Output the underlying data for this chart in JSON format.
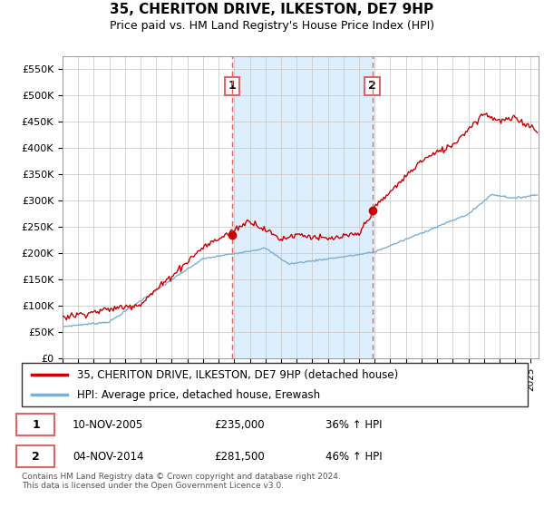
{
  "title": "35, CHERITON DRIVE, ILKESTON, DE7 9HP",
  "subtitle": "Price paid vs. HM Land Registry's House Price Index (HPI)",
  "legend_line1": "35, CHERITON DRIVE, ILKESTON, DE7 9HP (detached house)",
  "legend_line2": "HPI: Average price, detached house, Erewash",
  "annotation1_date": "10-NOV-2005",
  "annotation1_price": "£235,000",
  "annotation1_hpi": "36% ↑ HPI",
  "annotation2_date": "04-NOV-2014",
  "annotation2_price": "£281,500",
  "annotation2_hpi": "46% ↑ HPI",
  "footer": "Contains HM Land Registry data © Crown copyright and database right 2024.\nThis data is licensed under the Open Government Licence v3.0.",
  "red_color": "#cc0000",
  "blue_color": "#7ab0d4",
  "vline_color": "#dd6666",
  "shade_color": "#ddeeff",
  "ylim": [
    0,
    575000
  ],
  "yticks": [
    0,
    50000,
    100000,
    150000,
    200000,
    250000,
    300000,
    350000,
    400000,
    450000,
    500000,
    550000
  ],
  "ytick_labels": [
    "£0",
    "£50K",
    "£100K",
    "£150K",
    "£200K",
    "£250K",
    "£300K",
    "£350K",
    "£400K",
    "£450K",
    "£500K",
    "£550K"
  ],
  "purchase1_x": 2005.86,
  "purchase1_y": 235000,
  "purchase2_x": 2014.84,
  "purchase2_y": 281500,
  "xmin": 1995,
  "xmax": 2025.5,
  "xticks": [
    1995,
    1996,
    1997,
    1998,
    1999,
    2000,
    2001,
    2002,
    2003,
    2004,
    2005,
    2006,
    2007,
    2008,
    2009,
    2010,
    2011,
    2012,
    2013,
    2014,
    2015,
    2016,
    2017,
    2018,
    2019,
    2020,
    2021,
    2022,
    2023,
    2024,
    2025
  ]
}
